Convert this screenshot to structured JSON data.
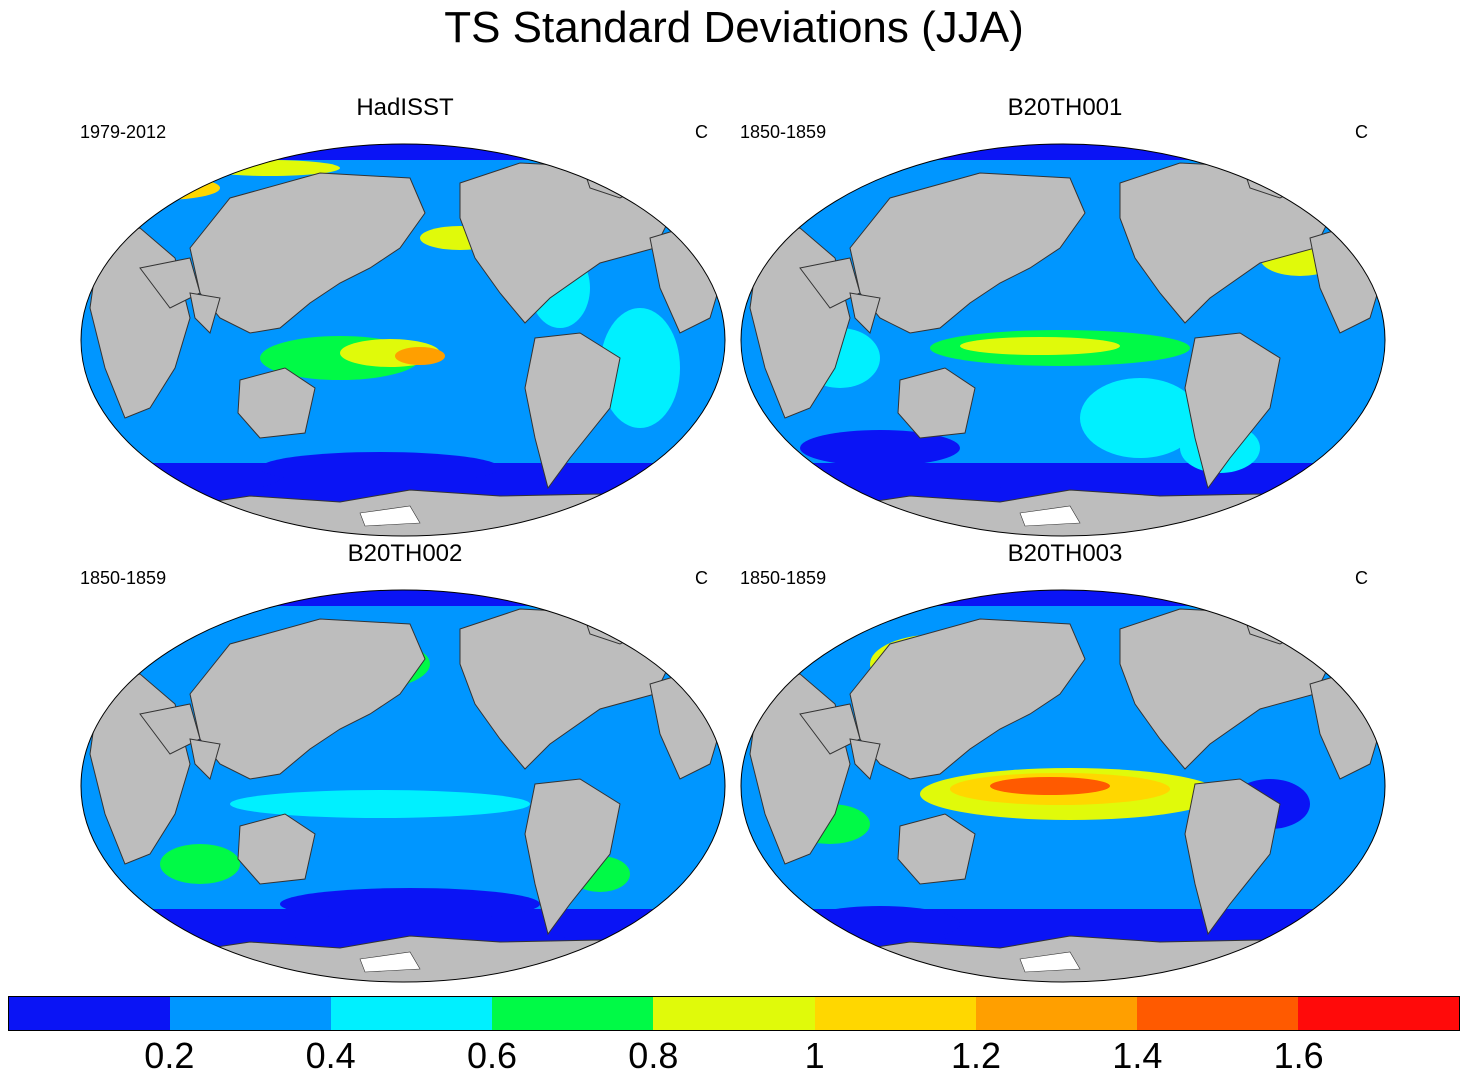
{
  "title": "TS Standard Deviations (JJA)",
  "panels": [
    {
      "title": "HadISST",
      "period": "1979-2012",
      "units": "C"
    },
    {
      "title": "B20TH001",
      "period": "1850-1859",
      "units": "C"
    },
    {
      "title": "B20TH002",
      "period": "1850-1859",
      "units": "C"
    },
    {
      "title": "B20TH003",
      "period": "1850-1859",
      "units": "C"
    }
  ],
  "colorbar": {
    "colors": [
      "#0a14f5",
      "#0096ff",
      "#00f0ff",
      "#00fa46",
      "#e0fa0a",
      "#ffd700",
      "#ff9f00",
      "#ff5a00",
      "#ff0a0a"
    ],
    "labels": [
      "0.2",
      "0.4",
      "0.6",
      "0.8",
      "1",
      "1.2",
      "1.4",
      "1.6"
    ]
  },
  "land_color": "#bdbdbd"
}
